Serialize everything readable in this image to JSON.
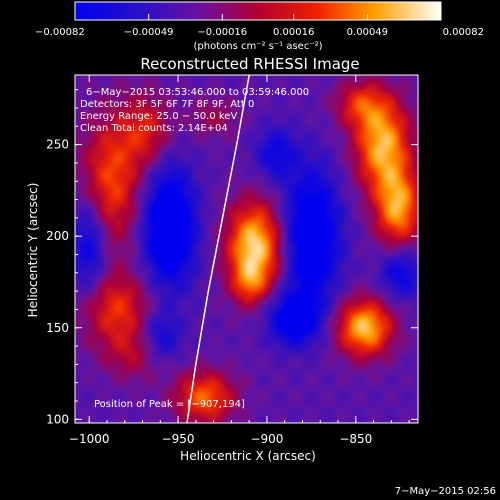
{
  "chart_data": {
    "type": "heatmap",
    "title": "Reconstructed RHESSI Image",
    "xlabel": "Heliocentric X (arcsec)",
    "ylabel": "Heliocentric Y (arcsec)",
    "xlim": [
      -1008,
      -815
    ],
    "ylim": [
      98,
      288
    ],
    "x_ticks": [
      -1000,
      -950,
      -900,
      -850
    ],
    "x_tick_labels": [
      "−1000",
      "−950",
      "−900",
      "−850"
    ],
    "y_ticks": [
      100,
      150,
      200,
      250
    ],
    "y_tick_labels": [
      "100",
      "150",
      "200",
      "250"
    ],
    "grid": false,
    "colorbar": {
      "min": -0.00082,
      "max": 0.00082,
      "ticks": [
        -0.00082,
        -0.00049,
        -0.00016,
        0.00016,
        0.00049,
        0.00082
      ],
      "tick_labels": [
        "−0.00082",
        "−0.00049",
        "−0.00016",
        "0.00016",
        "0.00049",
        "0.00082"
      ],
      "unit_label": "(photons cm⁻² s⁻¹ asec⁻²)"
    },
    "annotations": [
      "6−May−2015 03:53:46.000 to 03:59:46.000",
      "Detectors: 3F 5F 6F 7F 8F 9F, Att 0",
      "Energy Range: 25.0 − 50.0 keV",
      "Clean     Total counts: 2.14E+04"
    ],
    "peak_label": "Position of Peak = [−907,194]",
    "peak_position": [
      -907,
      194
    ],
    "limb_curve": [
      [
        -945,
        98
      ],
      [
        -940,
        130
      ],
      [
        -933,
        170
      ],
      [
        -925,
        210
      ],
      [
        -917,
        250
      ],
      [
        -910,
        288
      ]
    ],
    "sources": [
      {
        "x": -907,
        "y": 194,
        "amp": 1.0,
        "sx": 11,
        "sy": 17
      },
      {
        "x": -910,
        "y": 174,
        "amp": 0.35,
        "sx": 7,
        "sy": 8
      },
      {
        "x": -988,
        "y": 230,
        "amp": 0.62,
        "sx": 12,
        "sy": 25
      },
      {
        "x": -968,
        "y": 258,
        "amp": 0.45,
        "sx": 10,
        "sy": 14
      },
      {
        "x": -985,
        "y": 160,
        "amp": 0.55,
        "sx": 14,
        "sy": 14
      },
      {
        "x": -975,
        "y": 135,
        "amp": 0.3,
        "sx": 12,
        "sy": 10
      },
      {
        "x": -835,
        "y": 250,
        "amp": 0.88,
        "sx": 11,
        "sy": 18
      },
      {
        "x": -826,
        "y": 215,
        "amp": 0.8,
        "sx": 9,
        "sy": 15
      },
      {
        "x": -848,
        "y": 272,
        "amp": 0.45,
        "sx": 10,
        "sy": 9
      },
      {
        "x": -845,
        "y": 150,
        "amp": 0.92,
        "sx": 11,
        "sy": 11
      },
      {
        "x": -935,
        "y": 112,
        "amp": 0.68,
        "sx": 12,
        "sy": 10
      },
      {
        "x": -930,
        "y": 265,
        "amp": 0.25,
        "sx": 10,
        "sy": 8
      },
      {
        "x": -955,
        "y": 205,
        "amp": -0.85,
        "sx": 10,
        "sy": 22
      },
      {
        "x": -875,
        "y": 200,
        "amp": -0.75,
        "sx": 11,
        "sy": 25
      },
      {
        "x": -885,
        "y": 155,
        "amp": -0.65,
        "sx": 10,
        "sy": 10
      },
      {
        "x": -1000,
        "y": 195,
        "amp": -0.5,
        "sx": 7,
        "sy": 20
      },
      {
        "x": -895,
        "y": 245,
        "amp": -0.4,
        "sx": 8,
        "sy": 10
      },
      {
        "x": -825,
        "y": 180,
        "amp": -0.45,
        "sx": 8,
        "sy": 10
      },
      {
        "x": -960,
        "y": 145,
        "amp": -0.4,
        "sx": 8,
        "sy": 10
      }
    ]
  },
  "footer": {
    "timestamp": "7−May−2015 02:56"
  }
}
